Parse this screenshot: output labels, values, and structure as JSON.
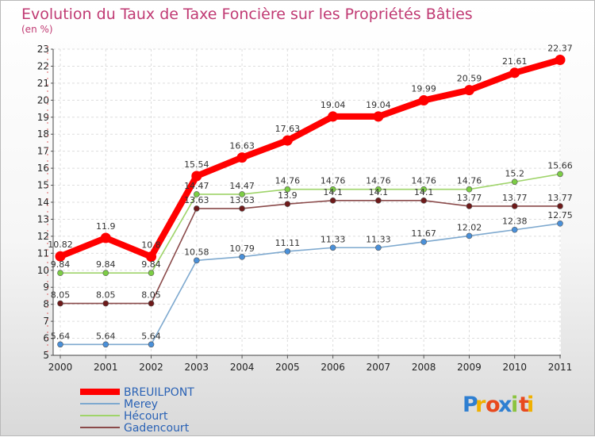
{
  "chart_data": {
    "type": "line",
    "title": "Evolution du Taux de Taxe Foncière sur les Propriétés Bâties",
    "unit_label": "(en %)",
    "xlabel": "",
    "ylabel": "",
    "categories": [
      "2000",
      "2001",
      "2002",
      "2003",
      "2004",
      "2005",
      "2006",
      "2007",
      "2008",
      "2009",
      "2010",
      "2011"
    ],
    "ylim": [
      5,
      23
    ],
    "yticks": [
      "5",
      "6",
      "7",
      "8",
      "9",
      "10",
      "11",
      "12",
      "13",
      "14",
      "15",
      "16",
      "17",
      "18",
      "19",
      "20",
      "21",
      "22",
      "23"
    ],
    "grid": true,
    "legend_position": "bottom-left",
    "series": [
      {
        "name": "BREUILPONT",
        "color": "#ff0000",
        "marker_color": "#ff0000",
        "emphasis": true,
        "values": [
          10.82,
          11.9,
          10.8,
          15.54,
          16.63,
          17.63,
          19.04,
          19.04,
          19.99,
          20.59,
          21.61,
          22.37
        ],
        "labels": [
          "10.82",
          "11.9",
          "10.8",
          "15.54",
          "16.63",
          "17.63",
          "19.04",
          "19.04",
          "19.99",
          "20.59",
          "21.61",
          "22.37"
        ]
      },
      {
        "name": "Merey",
        "color": "#7ea9cf",
        "marker_color": "#4a90d9",
        "emphasis": false,
        "values": [
          5.64,
          5.64,
          5.64,
          10.58,
          10.79,
          11.11,
          11.33,
          11.33,
          11.67,
          12.02,
          12.38,
          12.75
        ],
        "labels": [
          "5.64",
          "5.64",
          "5.64",
          "10.58",
          "10.79",
          "11.11",
          "11.33",
          "11.33",
          "11.67",
          "12.02",
          "12.38",
          "12.75"
        ]
      },
      {
        "name": "Hécourt",
        "color": "#9fd46a",
        "marker_color": "#7ccd45",
        "emphasis": false,
        "values": [
          9.84,
          9.84,
          9.84,
          14.47,
          14.47,
          14.76,
          14.76,
          14.76,
          14.76,
          14.76,
          15.2,
          15.66
        ],
        "labels": [
          "9.84",
          "9.84",
          "9.84",
          "14.47",
          "14.47",
          "14.76",
          "14.76",
          "14.76",
          "14.76",
          "14.76",
          "15.2",
          "15.66"
        ]
      },
      {
        "name": "Gadencourt",
        "color": "#8a4a4a",
        "marker_color": "#6e1a1a",
        "emphasis": false,
        "values": [
          8.05,
          8.05,
          8.05,
          13.63,
          13.63,
          13.9,
          14.1,
          14.1,
          14.1,
          13.77,
          13.77,
          13.77
        ],
        "labels": [
          "8.05",
          "8.05",
          "8.05",
          "13.63",
          "13.63",
          "13.9",
          "14.1",
          "14.1",
          "14.1",
          "13.77",
          "13.77",
          "13.77"
        ]
      }
    ]
  },
  "logo": {
    "letters": [
      "P",
      "r",
      "o",
      "x",
      "i",
      "t",
      "i"
    ],
    "colors": [
      "#2f7fd1",
      "#f0b000",
      "#e84a1e",
      "#2f7fd1",
      "#8bc43f",
      "#e84a1e",
      "#f0b000"
    ]
  }
}
